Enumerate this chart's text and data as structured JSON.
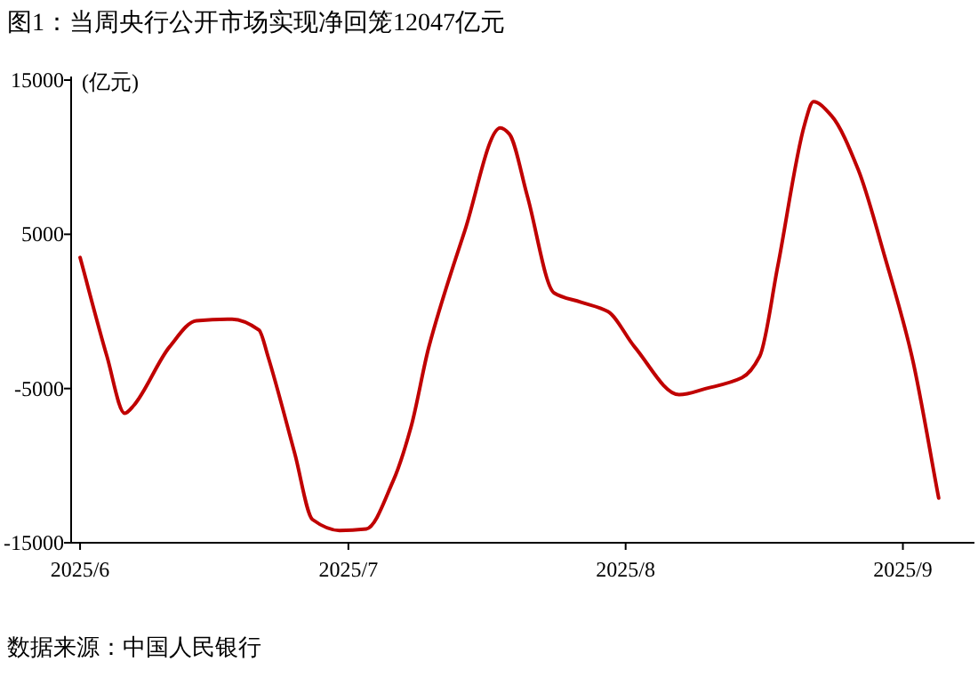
{
  "chart_data": {
    "type": "line",
    "title": "图1：当周央行公开市场实现净回笼12047亿元",
    "ylabel": "(亿元)",
    "annotations": [
      "数据来源：中国人民银行"
    ],
    "x": [
      "2025-06-01",
      "2025-06-04",
      "2025-06-06",
      "2025-06-07",
      "2025-06-11",
      "2025-06-14",
      "2025-06-18",
      "2025-06-21",
      "2025-06-22",
      "2025-06-25",
      "2025-06-27",
      "2025-06-30",
      "2025-07-03",
      "2025-07-06",
      "2025-07-08",
      "2025-07-10",
      "2025-07-14",
      "2025-07-18",
      "2025-07-19",
      "2025-07-21",
      "2025-07-24",
      "2025-07-27",
      "2025-07-30",
      "2025-08-02",
      "2025-08-07",
      "2025-08-10",
      "2025-08-14",
      "2025-08-16",
      "2025-08-18",
      "2025-08-21",
      "2025-08-22",
      "2025-08-24",
      "2025-08-27",
      "2025-08-30",
      "2025-09-02",
      "2025-09-05"
    ],
    "series": [
      {
        "color": "#c00000",
        "values": [
          3500,
          -2900,
          -6600,
          -6100,
          -2300,
          -600,
          -500,
          -1200,
          -2900,
          -9200,
          -13500,
          -14200,
          -14100,
          -11000,
          -7500,
          -2300,
          5200,
          11900,
          11500,
          7500,
          1200,
          600,
          0,
          -2300,
          -5400,
          -5000,
          -4300,
          -2900,
          2900,
          12100,
          13600,
          12700,
          9200,
          3500,
          -2900,
          -12100
        ]
      }
    ],
    "xlim": [
      "2025-05-31",
      "2025-09-09"
    ],
    "ylim": [
      -15000,
      15000
    ],
    "xticks": [
      {
        "value": "2025-06-01",
        "label": "2025/6"
      },
      {
        "value": "2025-07-01",
        "label": "2025/7"
      },
      {
        "value": "2025-08-01",
        "label": "2025/8"
      },
      {
        "value": "2025-09-01",
        "label": "2025/9"
      }
    ],
    "yticks": [
      -15000,
      -5000,
      5000,
      15000
    ]
  }
}
